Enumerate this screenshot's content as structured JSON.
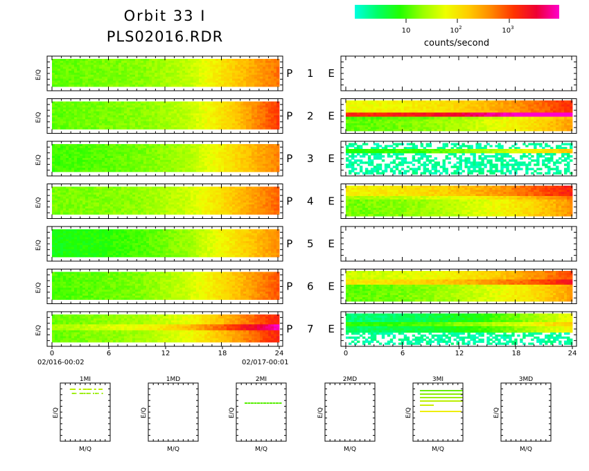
{
  "header": {
    "title_line1": "Orbit 33 I",
    "title_line2": "PLS02016.RDR"
  },
  "colorbar": {
    "unit": "counts/second",
    "ticks": [
      "10",
      "10",
      "10"
    ],
    "tick_exponents": [
      "",
      "2",
      "3"
    ],
    "colors": [
      "#00ffe0",
      "#00ff66",
      "#22ff00",
      "#99ff00",
      "#eeff00",
      "#ffcc00",
      "#ff8800",
      "#ff3300",
      "#ee0033",
      "#ff00cc"
    ]
  },
  "chart_data": {
    "type": "heatmap",
    "ylabel": "E/Q",
    "panel_labels": [
      "P 1 E",
      "P 2 E",
      "P 3 E",
      "P 4 E",
      "P 5 E",
      "P 6 E",
      "P 7 E"
    ],
    "x_ticks": [
      "0",
      "6",
      "12",
      "18",
      "24"
    ],
    "xlim": [
      0,
      24
    ],
    "x_start_label": "02/016-00:02",
    "x_end_label": "02/017-00:01",
    "p_panels": [
      {
        "id": "P1",
        "profile": [
          0.28,
          0.3,
          0.32,
          0.38,
          0.55,
          0.7
        ]
      },
      {
        "id": "P2",
        "profile": [
          0.28,
          0.3,
          0.32,
          0.38,
          0.55,
          0.78
        ]
      },
      {
        "id": "P3",
        "profile": [
          0.25,
          0.27,
          0.3,
          0.36,
          0.52,
          0.68
        ]
      },
      {
        "id": "P4",
        "profile": [
          0.3,
          0.31,
          0.33,
          0.4,
          0.56,
          0.72
        ]
      },
      {
        "id": "P5",
        "profile": [
          0.2,
          0.22,
          0.26,
          0.34,
          0.5,
          0.66
        ]
      },
      {
        "id": "P6",
        "profile": [
          0.26,
          0.28,
          0.31,
          0.4,
          0.56,
          0.74
        ]
      },
      {
        "id": "P7",
        "profile": [
          0.28,
          0.32,
          0.35,
          0.44,
          0.62,
          0.82
        ]
      }
    ],
    "e_panels": [
      {
        "id": "E1",
        "empty": true
      },
      {
        "id": "E2",
        "empty": false
      },
      {
        "id": "E3",
        "empty": false
      },
      {
        "id": "E4",
        "empty": false
      },
      {
        "id": "E5",
        "empty": true
      },
      {
        "id": "E6",
        "empty": false
      },
      {
        "id": "E7",
        "empty": false
      }
    ],
    "small_panels": [
      {
        "title": "1MI",
        "xlabel": "M/Q",
        "ylabel": "E/Q"
      },
      {
        "title": "1MD",
        "xlabel": "M/Q",
        "ylabel": "E/Q"
      },
      {
        "title": "2MI",
        "xlabel": "M/Q",
        "ylabel": "E/Q"
      },
      {
        "title": "2MD",
        "xlabel": "M/Q",
        "ylabel": "E/Q"
      },
      {
        "title": "3MI",
        "xlabel": "M/Q",
        "ylabel": "E/Q"
      },
      {
        "title": "3MD",
        "xlabel": "M/Q",
        "ylabel": "E/Q"
      }
    ]
  }
}
